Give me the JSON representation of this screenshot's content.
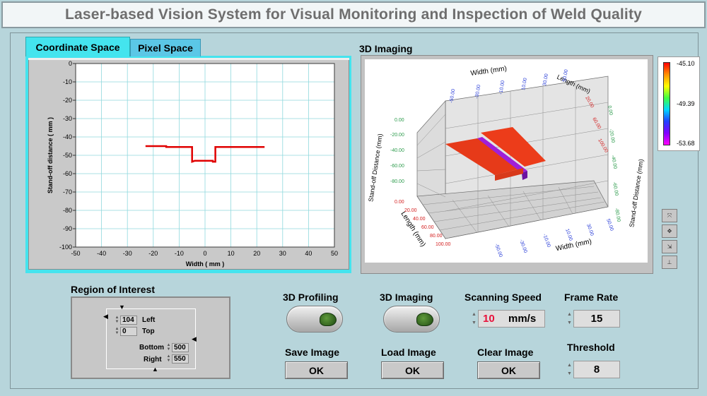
{
  "title": "Laser-based Vision System for Visual Monitoring and Inspection of Weld Quality",
  "tabs": [
    {
      "label": "Coordinate Space",
      "active": true
    },
    {
      "label": "Pixel Space",
      "active": false
    }
  ],
  "profile_chart": {
    "xlabel": "Width ( mm )",
    "ylabel": "Stand-off distance ( mm )",
    "x_ticks": [
      "-50",
      "-40",
      "-30",
      "-20",
      "-10",
      "0",
      "10",
      "20",
      "30",
      "40",
      "50"
    ],
    "y_ticks": [
      "0",
      "-10",
      "-20",
      "-30",
      "-40",
      "-50",
      "-60",
      "-70",
      "-80",
      "-90",
      "-100"
    ]
  },
  "chart_data": {
    "type": "line",
    "xlabel": "Width ( mm )",
    "ylabel": "Stand-off distance ( mm )",
    "xlim": [
      -50,
      50
    ],
    "ylim": [
      -100,
      0
    ],
    "grid": true,
    "series": [
      {
        "color": "#e00000",
        "x": [
          -23,
          -15,
          -15,
          -5,
          -5,
          -4,
          3,
          3,
          4,
          4,
          23
        ],
        "y": [
          -45,
          -45,
          -45.5,
          -45.5,
          -53.5,
          -53,
          -53,
          -53.5,
          -53.5,
          -45.5,
          -45.5
        ]
      }
    ]
  },
  "imaging": {
    "label": "3D Imaging",
    "axis_width_top": "Width (mm)",
    "axis_length_top": "Length (mm)",
    "axis_standoff_left": "Stand-off Distance (mm)",
    "axis_standoff_right": "Stand-off Distance (mm)",
    "axis_length_bottom": "Length (mm)",
    "axis_width_bottom": "Width (mm)",
    "standoff_ticks": [
      "0.00",
      "-20.00",
      "-40.00",
      "-60.00",
      "-80.00"
    ],
    "length_ticks": [
      "0.00",
      "20.00",
      "40.00",
      "60.00",
      "80.00",
      "100.00"
    ],
    "width_ticks": [
      "-50.00",
      "-30.00",
      "-10.00",
      "10.00",
      "30.00",
      "50.00"
    ]
  },
  "legend": {
    "max": "-45.10",
    "mid": "-49.39",
    "min": "-53.68"
  },
  "roi": {
    "label": "Region of Interest",
    "left_value": "104",
    "left_label": "Left",
    "top_value": "0",
    "top_label": "Top",
    "bottom_label": "Bottom",
    "bottom_value": "500",
    "right_label": "Right",
    "right_value": "550"
  },
  "controls": {
    "profiling_label": "3D Profiling",
    "imaging_label": "3D Imaging",
    "scanning_speed_label": "Scanning Speed",
    "scanning_speed_value": "10",
    "scanning_speed_unit": "mm/s",
    "frame_rate_label": "Frame Rate",
    "frame_rate_value": "15",
    "save_label": "Save Image",
    "save_btn": "OK",
    "load_label": "Load Image",
    "load_btn": "OK",
    "clear_label": "Clear Image",
    "clear_btn": "OK",
    "threshold_label": "Threshold",
    "threshold_value": "8"
  },
  "colors": {
    "background": "#b7d5db",
    "tab_active": "#44e4ee",
    "profile_line": "#e00000",
    "speed_value": "#e8103a"
  }
}
